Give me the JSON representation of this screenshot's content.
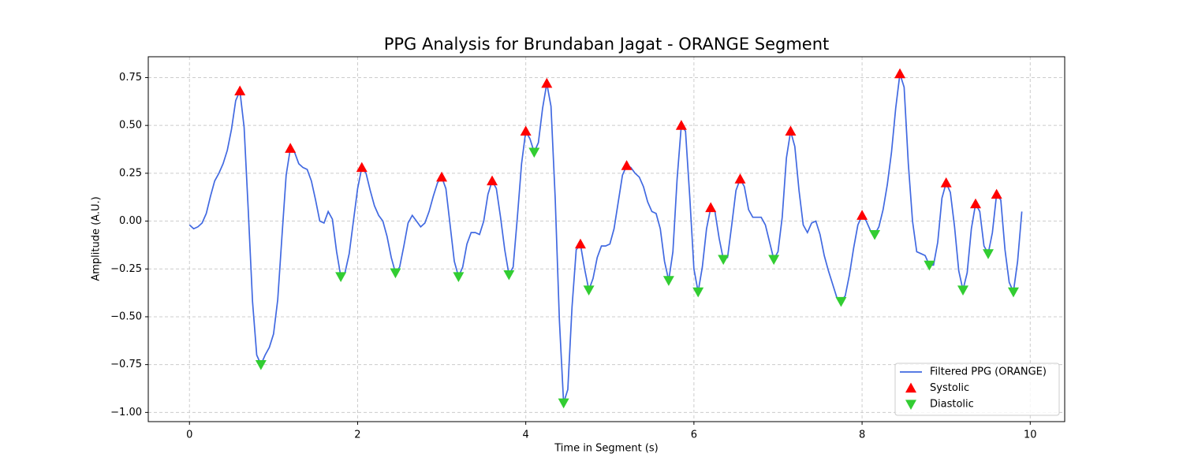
{
  "chart_data": {
    "type": "line",
    "title": "PPG Analysis for Brundaban Jagat - ORANGE Segment",
    "xlabel": "Time in Segment (s)",
    "ylabel": "Amplitude (A.U.)",
    "xlim": [
      -0.49,
      10.41
    ],
    "ylim": [
      -1.048,
      0.859
    ],
    "xticks": [
      0,
      2,
      4,
      6,
      8,
      10
    ],
    "yticks": [
      {
        "value": -1,
        "label": "−1.00"
      },
      {
        "value": -0.75,
        "label": "−0.75"
      },
      {
        "value": -0.5,
        "label": "−0.50"
      },
      {
        "value": -0.25,
        "label": "−0.25"
      },
      {
        "value": 0,
        "label": "0.00"
      },
      {
        "value": 0.25,
        "label": "0.25"
      },
      {
        "value": 0.5,
        "label": "0.50"
      },
      {
        "value": 0.75,
        "label": "0.75"
      }
    ],
    "grid": true,
    "legend": "lower right",
    "series": [
      {
        "name": "Filtered PPG (ORANGE)",
        "color": "#4169e1",
        "kind": "line",
        "x": [
          0,
          0.05,
          0.1,
          0.15,
          0.2,
          0.25,
          0.3,
          0.35,
          0.4,
          0.45,
          0.5,
          0.55,
          0.6,
          0.65,
          0.7,
          0.75,
          0.8,
          0.85,
          0.9,
          0.95,
          1,
          1.05,
          1.1,
          1.15,
          1.2,
          1.25,
          1.3,
          1.35,
          1.4,
          1.45,
          1.5,
          1.55,
          1.6,
          1.65,
          1.7,
          1.75,
          1.8,
          1.85,
          1.9,
          1.95,
          2,
          2.05,
          2.1,
          2.15,
          2.2,
          2.25,
          2.3,
          2.35,
          2.4,
          2.45,
          2.5,
          2.55,
          2.6,
          2.65,
          2.7,
          2.75,
          2.8,
          2.85,
          2.9,
          2.95,
          3,
          3.05,
          3.1,
          3.15,
          3.2,
          3.25,
          3.3,
          3.35,
          3.4,
          3.45,
          3.5,
          3.55,
          3.6,
          3.65,
          3.7,
          3.75,
          3.8,
          3.85,
          3.9,
          3.95,
          4,
          4.05,
          4.1,
          4.15,
          4.2,
          4.25,
          4.3,
          4.35,
          4.4,
          4.45,
          4.5,
          4.55,
          4.6,
          4.65,
          4.7,
          4.75,
          4.8,
          4.85,
          4.9,
          4.95,
          5,
          5.05,
          5.1,
          5.15,
          5.2,
          5.25,
          5.3,
          5.35,
          5.4,
          5.45,
          5.5,
          5.55,
          5.6,
          5.65,
          5.7,
          5.75,
          5.8,
          5.85,
          5.9,
          5.95,
          6,
          6.05,
          6.1,
          6.15,
          6.2,
          6.25,
          6.3,
          6.35,
          6.4,
          6.45,
          6.5,
          6.55,
          6.6,
          6.65,
          6.7,
          6.75,
          6.8,
          6.85,
          6.9,
          6.95,
          7,
          7.05,
          7.1,
          7.15,
          7.2,
          7.25,
          7.3,
          7.35,
          7.4,
          7.45,
          7.5,
          7.55,
          7.6,
          7.65,
          7.7,
          7.75,
          7.8,
          7.85,
          7.9,
          7.95,
          8,
          8.05,
          8.1,
          8.15,
          8.2,
          8.25,
          8.3,
          8.35,
          8.4,
          8.45,
          8.5,
          8.55,
          8.6,
          8.65,
          8.7,
          8.75,
          8.8,
          8.85,
          8.9,
          8.95,
          9,
          9.05,
          9.1,
          9.15,
          9.2,
          9.25,
          9.3,
          9.35,
          9.4,
          9.45,
          9.5,
          9.55,
          9.6,
          9.65,
          9.7,
          9.75,
          9.8,
          9.85,
          9.9
        ],
        "values": [
          -0.02,
          -0.04,
          -0.03,
          -0.01,
          0.04,
          0.13,
          0.21,
          0.25,
          0.3,
          0.37,
          0.48,
          0.63,
          0.68,
          0.49,
          0.05,
          -0.42,
          -0.7,
          -0.75,
          -0.7,
          -0.66,
          -0.59,
          -0.41,
          -0.08,
          0.24,
          0.38,
          0.36,
          0.3,
          0.28,
          0.27,
          0.21,
          0.11,
          0.0,
          -0.01,
          0.05,
          0.01,
          -0.16,
          -0.29,
          -0.27,
          -0.17,
          0.0,
          0.17,
          0.28,
          0.25,
          0.16,
          0.08,
          0.03,
          0.0,
          -0.08,
          -0.19,
          -0.27,
          -0.24,
          -0.13,
          -0.01,
          0.03,
          0.0,
          -0.03,
          -0.01,
          0.05,
          0.13,
          0.2,
          0.23,
          0.17,
          -0.02,
          -0.21,
          -0.29,
          -0.24,
          -0.12,
          -0.06,
          -0.06,
          -0.07,
          0.0,
          0.14,
          0.21,
          0.17,
          0.02,
          -0.15,
          -0.28,
          -0.24,
          0.02,
          0.3,
          0.47,
          0.43,
          0.36,
          0.41,
          0.59,
          0.72,
          0.6,
          0.12,
          -0.52,
          -0.95,
          -0.88,
          -0.45,
          -0.15,
          -0.12,
          -0.25,
          -0.36,
          -0.3,
          -0.19,
          -0.13,
          -0.13,
          -0.12,
          -0.04,
          0.1,
          0.24,
          0.29,
          0.28,
          0.25,
          0.23,
          0.18,
          0.1,
          0.05,
          0.04,
          -0.04,
          -0.21,
          -0.31,
          -0.16,
          0.22,
          0.5,
          0.47,
          0.13,
          -0.25,
          -0.37,
          -0.24,
          -0.04,
          0.07,
          0.05,
          -0.09,
          -0.2,
          -0.19,
          -0.02,
          0.16,
          0.22,
          0.18,
          0.06,
          0.02,
          0.02,
          0.02,
          -0.02,
          -0.11,
          -0.2,
          -0.16,
          0.02,
          0.33,
          0.47,
          0.39,
          0.16,
          -0.02,
          -0.06,
          -0.01,
          0.0,
          -0.07,
          -0.18,
          -0.26,
          -0.33,
          -0.4,
          -0.42,
          -0.39,
          -0.28,
          -0.14,
          -0.02,
          0.03,
          0.0,
          -0.05,
          -0.07,
          -0.03,
          0.06,
          0.19,
          0.36,
          0.59,
          0.77,
          0.7,
          0.3,
          0.0,
          -0.16,
          -0.17,
          -0.18,
          -0.23,
          -0.23,
          -0.11,
          0.12,
          0.2,
          0.15,
          -0.03,
          -0.26,
          -0.36,
          -0.27,
          -0.04,
          0.09,
          0.05,
          -0.13,
          -0.17,
          -0.06,
          0.14,
          0.11,
          -0.15,
          -0.32,
          -0.37,
          -0.21,
          0.05
        ]
      },
      {
        "name": "Systolic",
        "color": "#ff0000",
        "kind": "marker-up",
        "x": [
          0.6,
          1.2,
          2.05,
          3.0,
          3.6,
          4.0,
          4.25,
          4.65,
          5.2,
          5.85,
          6.2,
          6.55,
          7.15,
          8.0,
          8.45,
          9.0,
          9.35,
          9.6
        ],
        "values": [
          0.68,
          0.38,
          0.28,
          0.23,
          0.21,
          0.47,
          0.72,
          -0.12,
          0.29,
          0.5,
          0.07,
          0.22,
          0.47,
          0.03,
          0.77,
          0.2,
          0.09,
          0.14
        ]
      },
      {
        "name": "Diastolic",
        "color": "#32cd32",
        "kind": "marker-down",
        "x": [
          0.85,
          1.8,
          2.45,
          3.2,
          3.8,
          4.1,
          4.45,
          4.75,
          5.7,
          6.05,
          6.35,
          6.95,
          7.75,
          8.15,
          8.8,
          9.2,
          9.5,
          9.8
        ],
        "values": [
          -0.75,
          -0.29,
          -0.27,
          -0.29,
          -0.28,
          0.36,
          -0.95,
          -0.36,
          -0.31,
          -0.37,
          -0.2,
          -0.2,
          -0.42,
          -0.07,
          -0.23,
          -0.36,
          -0.17,
          -0.37
        ]
      }
    ]
  }
}
